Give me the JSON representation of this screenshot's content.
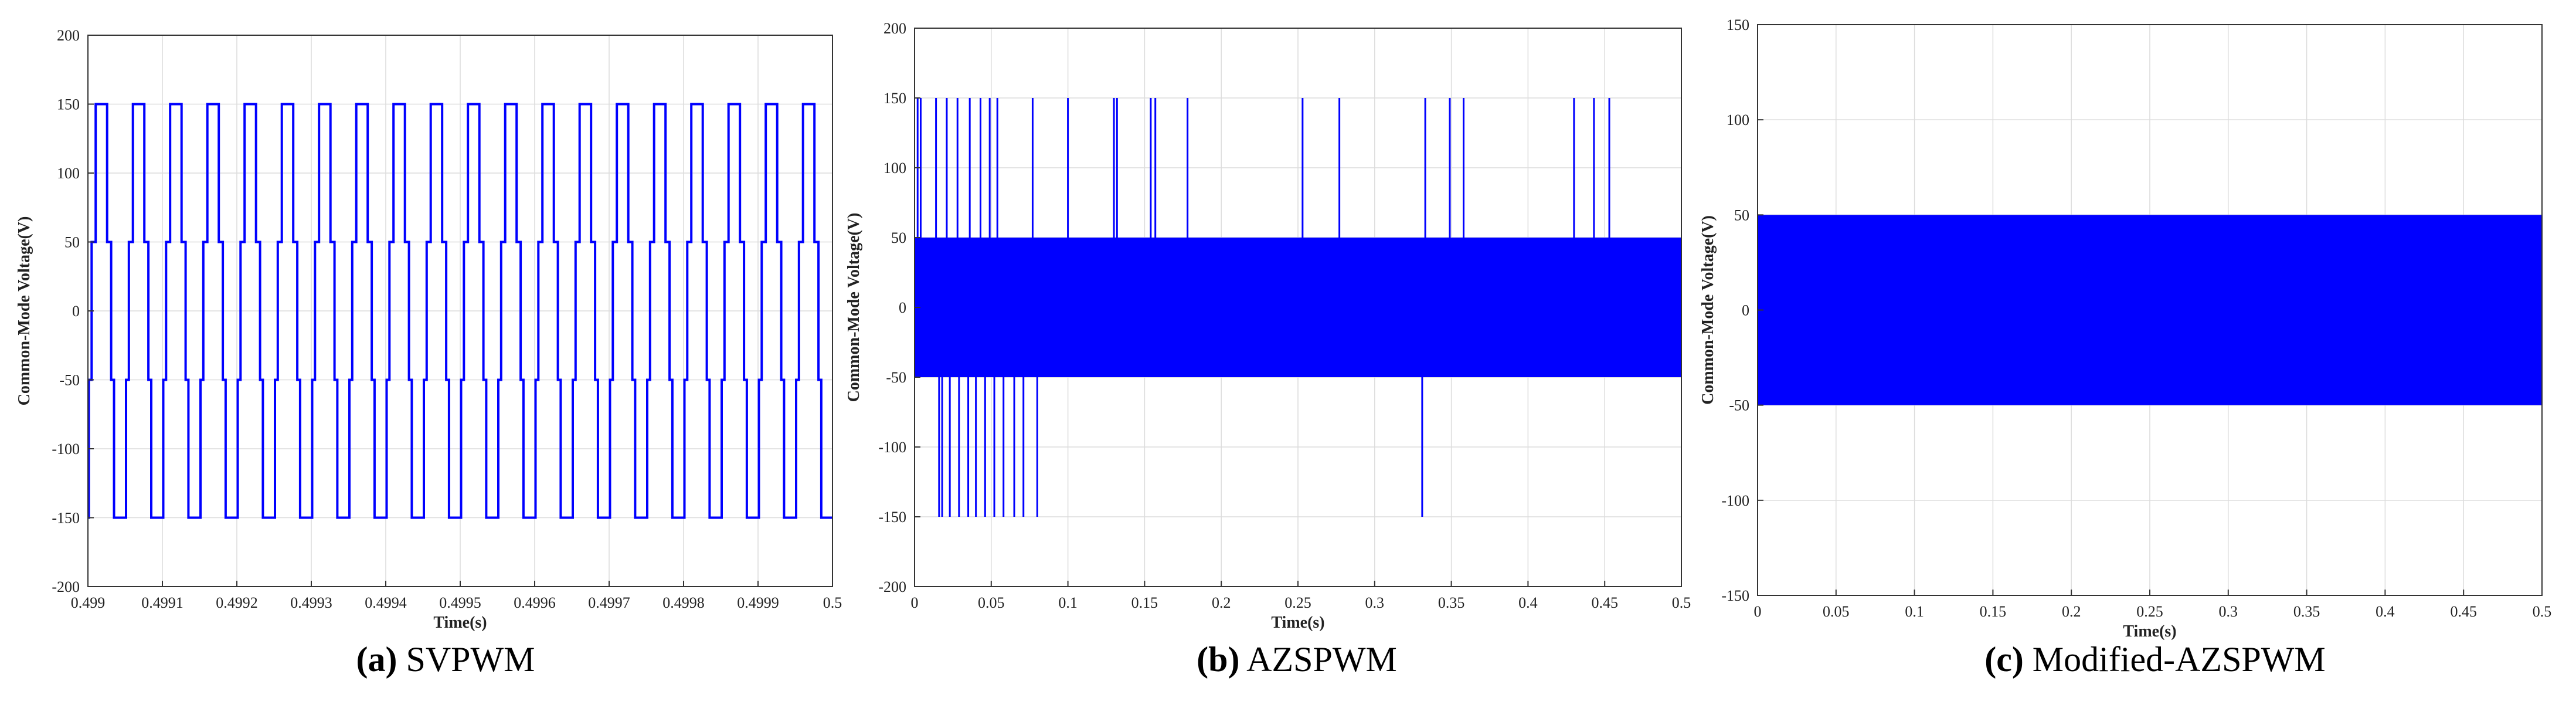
{
  "chart_data": [
    {
      "type": "line",
      "caption_letter": "(a)",
      "caption_text": "SVPWM",
      "xlabel": "Time(s)",
      "ylabel": "Common-Mode Voltage(V)",
      "xlim": [
        0.499,
        0.5
      ],
      "ylim": [
        -200,
        200
      ],
      "xticks": [
        0.499,
        0.4991,
        0.4992,
        0.4993,
        0.4994,
        0.4995,
        0.4996,
        0.4997,
        0.4998,
        0.4999,
        0.5
      ],
      "xtick_labels": [
        "0.499",
        "0.4991",
        "0.4992",
        "0.4993",
        "0.4994",
        "0.4995",
        "0.4996",
        "0.4997",
        "0.4998",
        "0.4999",
        "0.5"
      ],
      "yticks": [
        -200,
        -150,
        -100,
        -50,
        0,
        50,
        100,
        150,
        200
      ],
      "ytick_labels": [
        "-200",
        "-150",
        "-100",
        "-50",
        "0",
        "50",
        "100",
        "150",
        "200"
      ],
      "grid": true,
      "line_color": "#0000ff",
      "series": [
        {
          "levels": [
            -150,
            -50,
            50,
            150
          ],
          "switching_period": 5e-05,
          "pattern": "staircase -150 / -50 / 50 / 150 / 50 / -50 per switching period"
        }
      ]
    },
    {
      "type": "line",
      "caption_letter": "(b)",
      "caption_text": "AZSPWM",
      "xlabel": "Time(s)",
      "ylabel": "Common-Mode Voltage(V)",
      "xlim": [
        0,
        0.5
      ],
      "ylim": [
        -200,
        200
      ],
      "xticks": [
        0,
        0.05,
        0.1,
        0.15,
        0.2,
        0.25,
        0.3,
        0.35,
        0.4,
        0.45,
        0.5
      ],
      "xtick_labels": [
        "0",
        "0.05",
        "0.1",
        "0.15",
        "0.2",
        "0.25",
        "0.3",
        "0.35",
        "0.4",
        "0.45",
        "0.5"
      ],
      "yticks": [
        -200,
        -150,
        -100,
        -50,
        0,
        50,
        100,
        150,
        200
      ],
      "ytick_labels": [
        "-200",
        "-150",
        "-100",
        "-50",
        "0",
        "50",
        "100",
        "150",
        "200"
      ],
      "grid": true,
      "line_color": "#0000ff",
      "series": [
        {
          "band": [
            -50,
            50
          ],
          "positive_spikes_to_150": [
            0.002,
            0.004,
            0.014,
            0.021,
            0.028,
            0.036,
            0.043,
            0.049,
            0.054,
            0.077,
            0.1,
            0.13,
            0.132,
            0.154,
            0.157,
            0.178,
            0.253,
            0.277,
            0.333,
            0.349,
            0.358,
            0.43,
            0.443,
            0.453
          ],
          "negative_spikes_to_-150": [
            0.016,
            0.018,
            0.023,
            0.029,
            0.035,
            0.04,
            0.046,
            0.052,
            0.058,
            0.065,
            0.071,
            0.08,
            0.331
          ]
        }
      ]
    },
    {
      "type": "line",
      "caption_letter": "(c)",
      "caption_text": "Modified-AZSPWM",
      "xlabel": "Time(s)",
      "ylabel": "Common-Mode Voltage(V)",
      "xlim": [
        0,
        0.5
      ],
      "ylim": [
        -150,
        150
      ],
      "xticks": [
        0,
        0.05,
        0.1,
        0.15,
        0.2,
        0.25,
        0.3,
        0.35,
        0.4,
        0.45,
        0.5
      ],
      "xtick_labels": [
        "0",
        "0.05",
        "0.1",
        "0.15",
        "0.2",
        "0.25",
        "0.3",
        "0.35",
        "0.4",
        "0.45",
        "0.5"
      ],
      "yticks": [
        -150,
        -100,
        -50,
        0,
        50,
        100,
        150
      ],
      "ytick_labels": [
        "-150",
        "-100",
        "-50",
        "0",
        "50",
        "100",
        "150"
      ],
      "grid": true,
      "line_color": "#0000ff",
      "series": [
        {
          "band": [
            -50,
            50
          ]
        }
      ]
    }
  ]
}
